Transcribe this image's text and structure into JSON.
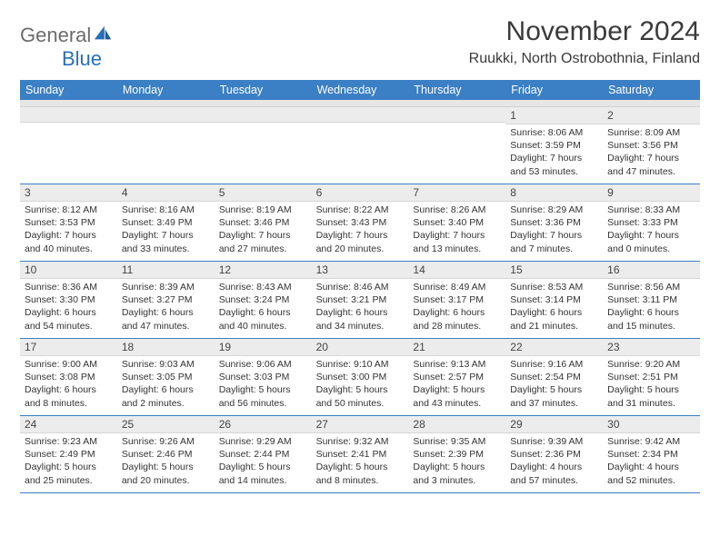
{
  "logo": {
    "part1": "General",
    "part2": "Blue"
  },
  "header": {
    "title": "November 2024",
    "location": "Ruukki, North Ostrobothnia, Finland"
  },
  "colors": {
    "header_bg": "#3b7fc4",
    "header_text": "#ffffff",
    "num_bg": "#ececec",
    "border": "#3b7fc4",
    "logo_gray": "#6b6b6b",
    "logo_blue": "#2a70b8",
    "text": "#333333"
  },
  "days": [
    "Sunday",
    "Monday",
    "Tuesday",
    "Wednesday",
    "Thursday",
    "Friday",
    "Saturday"
  ],
  "weeks": [
    [
      {
        "n": "",
        "sr": "",
        "ss": "",
        "dl": ""
      },
      {
        "n": "",
        "sr": "",
        "ss": "",
        "dl": ""
      },
      {
        "n": "",
        "sr": "",
        "ss": "",
        "dl": ""
      },
      {
        "n": "",
        "sr": "",
        "ss": "",
        "dl": ""
      },
      {
        "n": "",
        "sr": "",
        "ss": "",
        "dl": ""
      },
      {
        "n": "1",
        "sr": "Sunrise: 8:06 AM",
        "ss": "Sunset: 3:59 PM",
        "dl": "Daylight: 7 hours and 53 minutes."
      },
      {
        "n": "2",
        "sr": "Sunrise: 8:09 AM",
        "ss": "Sunset: 3:56 PM",
        "dl": "Daylight: 7 hours and 47 minutes."
      }
    ],
    [
      {
        "n": "3",
        "sr": "Sunrise: 8:12 AM",
        "ss": "Sunset: 3:53 PM",
        "dl": "Daylight: 7 hours and 40 minutes."
      },
      {
        "n": "4",
        "sr": "Sunrise: 8:16 AM",
        "ss": "Sunset: 3:49 PM",
        "dl": "Daylight: 7 hours and 33 minutes."
      },
      {
        "n": "5",
        "sr": "Sunrise: 8:19 AM",
        "ss": "Sunset: 3:46 PM",
        "dl": "Daylight: 7 hours and 27 minutes."
      },
      {
        "n": "6",
        "sr": "Sunrise: 8:22 AM",
        "ss": "Sunset: 3:43 PM",
        "dl": "Daylight: 7 hours and 20 minutes."
      },
      {
        "n": "7",
        "sr": "Sunrise: 8:26 AM",
        "ss": "Sunset: 3:40 PM",
        "dl": "Daylight: 7 hours and 13 minutes."
      },
      {
        "n": "8",
        "sr": "Sunrise: 8:29 AM",
        "ss": "Sunset: 3:36 PM",
        "dl": "Daylight: 7 hours and 7 minutes."
      },
      {
        "n": "9",
        "sr": "Sunrise: 8:33 AM",
        "ss": "Sunset: 3:33 PM",
        "dl": "Daylight: 7 hours and 0 minutes."
      }
    ],
    [
      {
        "n": "10",
        "sr": "Sunrise: 8:36 AM",
        "ss": "Sunset: 3:30 PM",
        "dl": "Daylight: 6 hours and 54 minutes."
      },
      {
        "n": "11",
        "sr": "Sunrise: 8:39 AM",
        "ss": "Sunset: 3:27 PM",
        "dl": "Daylight: 6 hours and 47 minutes."
      },
      {
        "n": "12",
        "sr": "Sunrise: 8:43 AM",
        "ss": "Sunset: 3:24 PM",
        "dl": "Daylight: 6 hours and 40 minutes."
      },
      {
        "n": "13",
        "sr": "Sunrise: 8:46 AM",
        "ss": "Sunset: 3:21 PM",
        "dl": "Daylight: 6 hours and 34 minutes."
      },
      {
        "n": "14",
        "sr": "Sunrise: 8:49 AM",
        "ss": "Sunset: 3:17 PM",
        "dl": "Daylight: 6 hours and 28 minutes."
      },
      {
        "n": "15",
        "sr": "Sunrise: 8:53 AM",
        "ss": "Sunset: 3:14 PM",
        "dl": "Daylight: 6 hours and 21 minutes."
      },
      {
        "n": "16",
        "sr": "Sunrise: 8:56 AM",
        "ss": "Sunset: 3:11 PM",
        "dl": "Daylight: 6 hours and 15 minutes."
      }
    ],
    [
      {
        "n": "17",
        "sr": "Sunrise: 9:00 AM",
        "ss": "Sunset: 3:08 PM",
        "dl": "Daylight: 6 hours and 8 minutes."
      },
      {
        "n": "18",
        "sr": "Sunrise: 9:03 AM",
        "ss": "Sunset: 3:05 PM",
        "dl": "Daylight: 6 hours and 2 minutes."
      },
      {
        "n": "19",
        "sr": "Sunrise: 9:06 AM",
        "ss": "Sunset: 3:03 PM",
        "dl": "Daylight: 5 hours and 56 minutes."
      },
      {
        "n": "20",
        "sr": "Sunrise: 9:10 AM",
        "ss": "Sunset: 3:00 PM",
        "dl": "Daylight: 5 hours and 50 minutes."
      },
      {
        "n": "21",
        "sr": "Sunrise: 9:13 AM",
        "ss": "Sunset: 2:57 PM",
        "dl": "Daylight: 5 hours and 43 minutes."
      },
      {
        "n": "22",
        "sr": "Sunrise: 9:16 AM",
        "ss": "Sunset: 2:54 PM",
        "dl": "Daylight: 5 hours and 37 minutes."
      },
      {
        "n": "23",
        "sr": "Sunrise: 9:20 AM",
        "ss": "Sunset: 2:51 PM",
        "dl": "Daylight: 5 hours and 31 minutes."
      }
    ],
    [
      {
        "n": "24",
        "sr": "Sunrise: 9:23 AM",
        "ss": "Sunset: 2:49 PM",
        "dl": "Daylight: 5 hours and 25 minutes."
      },
      {
        "n": "25",
        "sr": "Sunrise: 9:26 AM",
        "ss": "Sunset: 2:46 PM",
        "dl": "Daylight: 5 hours and 20 minutes."
      },
      {
        "n": "26",
        "sr": "Sunrise: 9:29 AM",
        "ss": "Sunset: 2:44 PM",
        "dl": "Daylight: 5 hours and 14 minutes."
      },
      {
        "n": "27",
        "sr": "Sunrise: 9:32 AM",
        "ss": "Sunset: 2:41 PM",
        "dl": "Daylight: 5 hours and 8 minutes."
      },
      {
        "n": "28",
        "sr": "Sunrise: 9:35 AM",
        "ss": "Sunset: 2:39 PM",
        "dl": "Daylight: 5 hours and 3 minutes."
      },
      {
        "n": "29",
        "sr": "Sunrise: 9:39 AM",
        "ss": "Sunset: 2:36 PM",
        "dl": "Daylight: 4 hours and 57 minutes."
      },
      {
        "n": "30",
        "sr": "Sunrise: 9:42 AM",
        "ss": "Sunset: 2:34 PM",
        "dl": "Daylight: 4 hours and 52 minutes."
      }
    ]
  ]
}
